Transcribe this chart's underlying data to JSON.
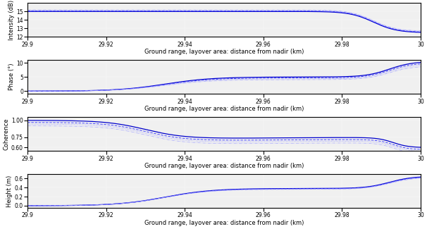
{
  "x_start": 29.9,
  "x_end": 30.0,
  "x_label": "Ground range, layover area: distance from nadir (km)",
  "x_ticks": [
    29.9,
    29.92,
    29.94,
    29.96,
    29.98,
    30.0
  ],
  "x_tick_labels": [
    "29.9",
    "29.92",
    "29.94",
    "29.96",
    "29.98",
    "30"
  ],
  "subplot1": {
    "ylabel": "Intensity (dB)",
    "ylim": [
      12,
      16
    ],
    "yticks": [
      12,
      13,
      14,
      15
    ]
  },
  "subplot2": {
    "ylabel": "Phase (°)",
    "ylim": [
      -1,
      11
    ],
    "yticks": [
      0,
      5,
      10
    ]
  },
  "subplot3": {
    "ylabel": "Coherence",
    "ylim": [
      0.55,
      1.05
    ],
    "yticks_show": [
      0.6,
      0.75,
      1.0
    ]
  },
  "subplot4": {
    "ylabel": "Height (m)",
    "ylim": [
      -0.05,
      0.7
    ],
    "yticks": [
      0.0,
      0.2,
      0.4,
      0.6
    ]
  },
  "line_styles": [
    {
      "ls": "-",
      "lw": 0.9,
      "color": "#0000cc"
    },
    {
      "ls": "--",
      "lw": 0.7,
      "color": "#4444ff"
    },
    {
      "ls": ":",
      "lw": 0.6,
      "color": "#8888ff"
    },
    {
      "ls": "-.",
      "lw": 0.5,
      "color": "#aaaaff"
    }
  ],
  "bg_color": "#f0f0f0",
  "fig_facecolor": "#ffffff",
  "fontsize_label": 6,
  "fontsize_tick": 5.5
}
